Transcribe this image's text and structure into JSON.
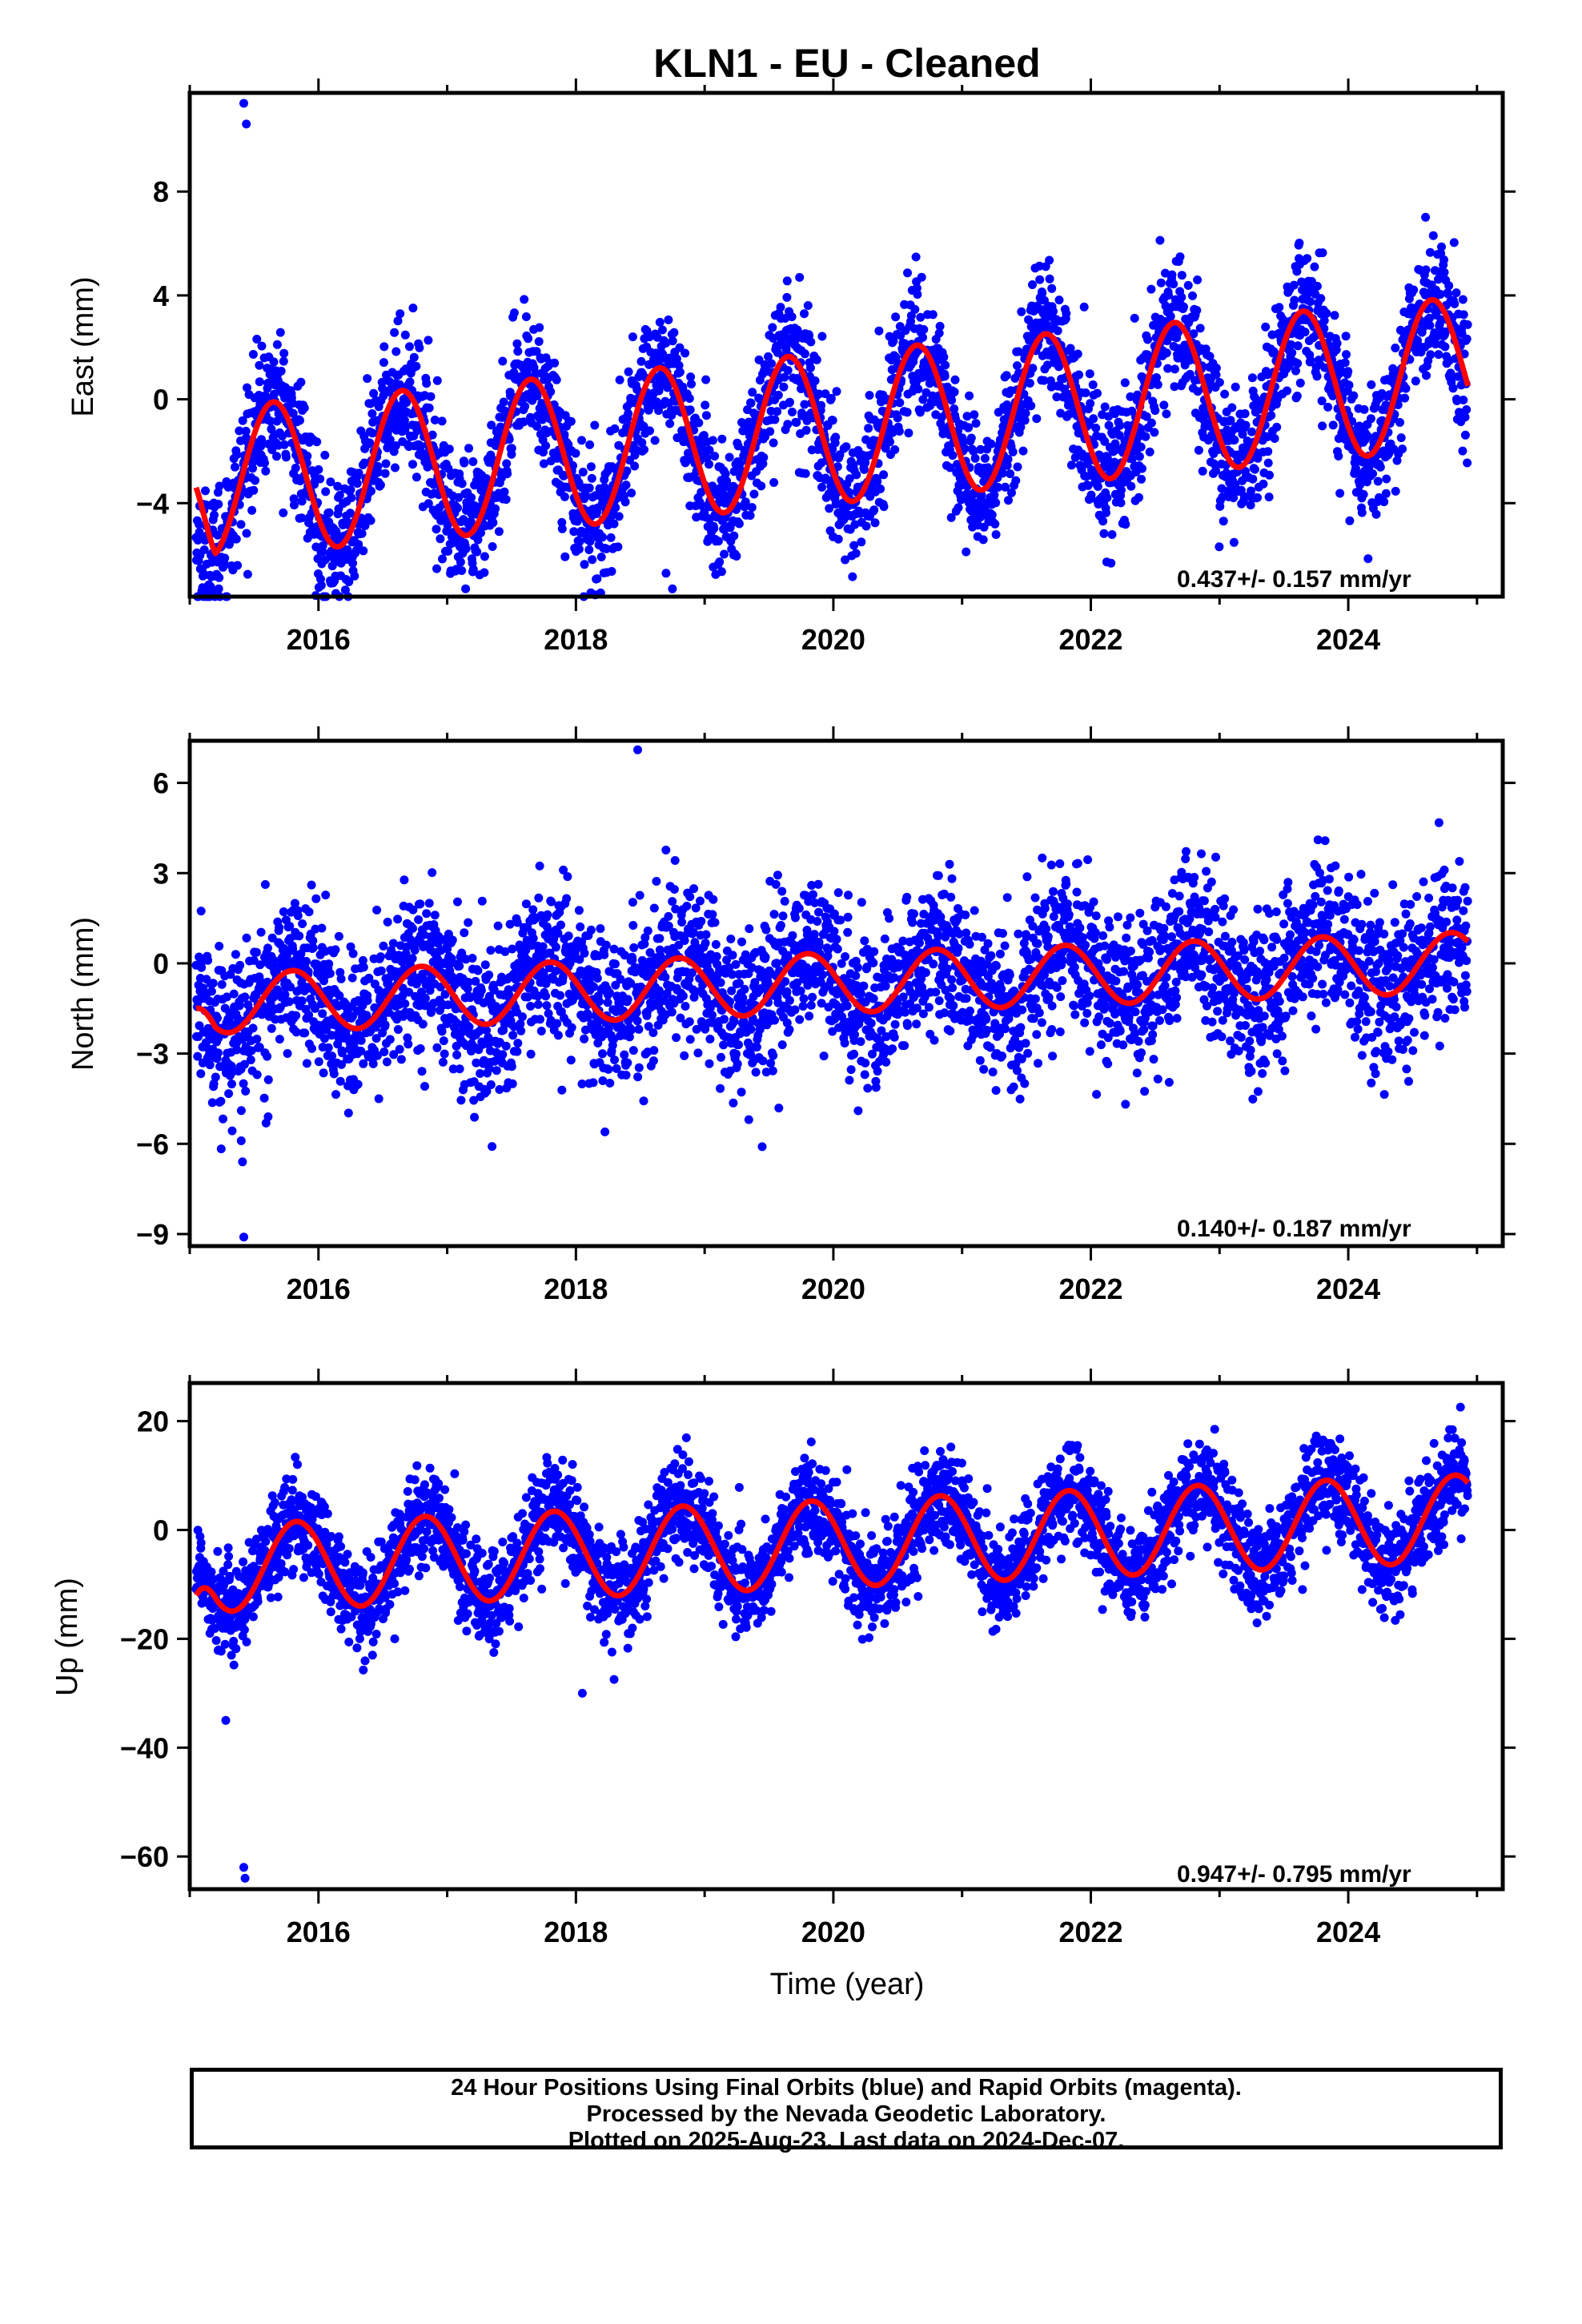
{
  "chart_data": [
    {
      "type": "scatter",
      "title": "KLN1  - EU - Cleaned",
      "ylabel": "East (mm)",
      "xlabel": "",
      "xlim": [
        2015.0,
        2025.2
      ],
      "ylim": [
        -7.6,
        11.8
      ],
      "yticks": [
        -4,
        0,
        4,
        8
      ],
      "xticks": [
        2016,
        2018,
        2020,
        2022,
        2024
      ],
      "rate_label": "0.437+/- 0.157 mm/yr",
      "series": [
        {
          "name": "",
          "color": "#0000ff",
          "kind": "points"
        },
        {
          "name": "",
          "color": "#ff0000",
          "kind": "line"
        }
      ],
      "model": {
        "offset": -1.1,
        "slope": 0.437,
        "annual_amp": 2.9,
        "phase": 0.4,
        "noise": 1.3,
        "t0": 2015.05,
        "t1": 2024.93,
        "line_start": -3.4
      },
      "outliers": [
        [
          2015.42,
          11.4
        ],
        [
          2015.44,
          10.6
        ],
        [
          2018.75,
          -7.3
        ],
        [
          2018.7,
          -6.7
        ]
      ]
    },
    {
      "type": "scatter",
      "title": "",
      "ylabel": "North (mm)",
      "xlabel": "",
      "xlim": [
        2015.0,
        2025.2
      ],
      "ylim": [
        -9.4,
        7.4
      ],
      "yticks": [
        -9,
        -6,
        -3,
        0,
        3,
        6
      ],
      "xticks": [
        2016,
        2018,
        2020,
        2022,
        2024
      ],
      "rate_label": "0.140+/- 0.187 mm/yr",
      "series": [
        {
          "name": "",
          "color": "#0000ff",
          "kind": "points"
        },
        {
          "name": "",
          "color": "#ff0000",
          "kind": "line"
        }
      ],
      "model": {
        "offset": -0.65,
        "slope": 0.14,
        "annual_amp": 1.0,
        "phase": 0.55,
        "noise": 1.3,
        "t0": 2015.05,
        "t1": 2024.93,
        "line_start": -1.5
      },
      "outliers": [
        [
          2015.42,
          -9.1
        ],
        [
          2015.41,
          -6.6
        ],
        [
          2018.48,
          7.1
        ],
        [
          2015.4,
          -5.9
        ]
      ]
    },
    {
      "type": "scatter",
      "title": "",
      "ylabel": "Up (mm)",
      "xlabel": "Time (year)",
      "xlim": [
        2015.0,
        2025.2
      ],
      "ylim": [
        -66,
        27
      ],
      "yticks": [
        -60,
        -40,
        -20,
        0,
        20
      ],
      "xticks": [
        2016,
        2018,
        2020,
        2022,
        2024
      ],
      "rate_label": "0.947+/- 0.795 mm/yr",
      "series": [
        {
          "name": "",
          "color": "#0000ff",
          "kind": "points"
        },
        {
          "name": "",
          "color": "#ff0000",
          "kind": "line"
        }
      ],
      "model": {
        "offset": -2.5,
        "slope": 0.947,
        "annual_amp": 8.0,
        "phase": 0.58,
        "noise": 4.5,
        "t0": 2015.05,
        "t1": 2024.93,
        "line_start": -12
      },
      "outliers": [
        [
          2015.42,
          -62.0
        ],
        [
          2015.43,
          -64.0
        ],
        [
          2015.28,
          -35.0
        ],
        [
          2018.05,
          -30.0
        ]
      ]
    }
  ],
  "footer": {
    "line1": "24 Hour Positions Using Final Orbits (blue) and Rapid Orbits (magenta).",
    "line2": "Processed by the Nevada Geodetic Laboratory.",
    "line3": "Plotted on 2025-Aug-23. Last data on 2024-Dec-07."
  }
}
